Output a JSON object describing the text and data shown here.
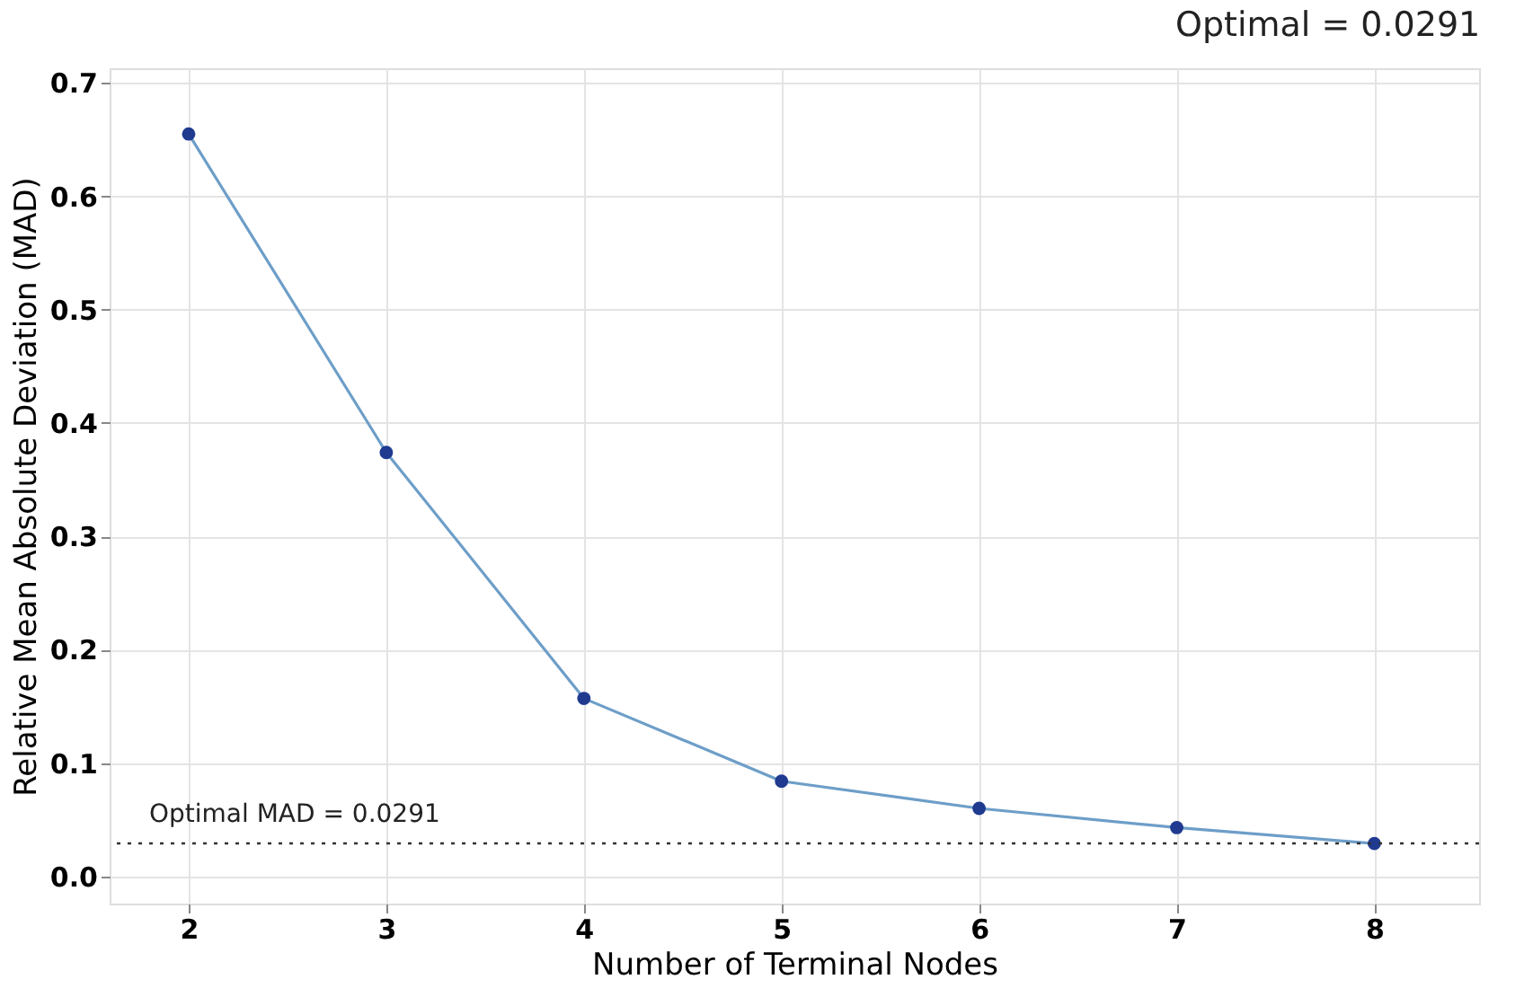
{
  "chart_data": {
    "type": "line",
    "title": "Optimal = 0.0291",
    "xlabel": "Number of Terminal Nodes",
    "ylabel": "Relative Mean Absolute Deviation (MAD)",
    "x": [
      2,
      3,
      4,
      5,
      6,
      7,
      8
    ],
    "series": [
      {
        "color": "#1f3a8f",
        "values": [
          0.655,
          0.374,
          0.157,
          0.084,
          0.06,
          0.043,
          0.029
        ]
      }
    ],
    "xlim": [
      1.6,
      8.53
    ],
    "xticks": [
      2,
      3,
      4,
      5,
      6,
      7,
      8
    ],
    "ylim": [
      -0.024,
      0.713
    ],
    "yticks": [
      {
        "value": 0,
        "label": "0.0"
      },
      0.1,
      0.2,
      0.3,
      0.4,
      0.5,
      0.6,
      0.7
    ],
    "ref_lines": [
      {
        "axis": "y",
        "value": 0.0291,
        "label": "Optimal MAD = 0.0291",
        "color": "#333333",
        "line_style": "dotted"
      }
    ],
    "grid": true,
    "marker": "circle",
    "line_style": "solid"
  }
}
